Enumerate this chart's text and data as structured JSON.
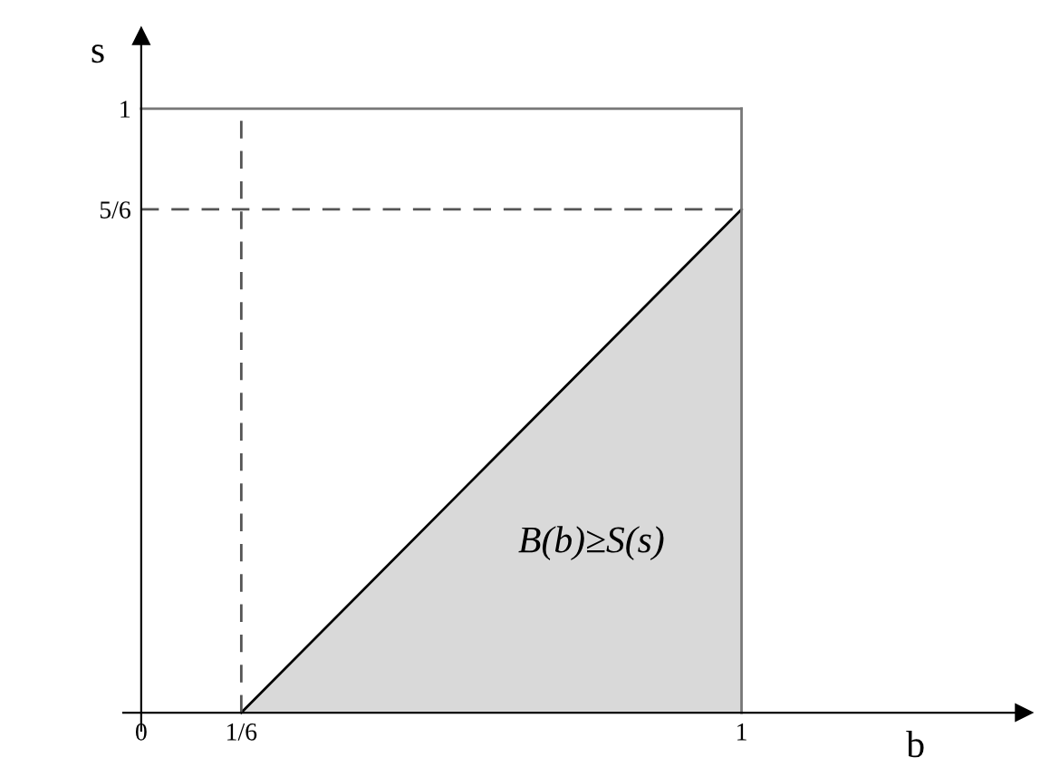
{
  "chart_data": {
    "type": "area",
    "xlabel": "b",
    "ylabel": "s",
    "x": [
      0.1667,
      1
    ],
    "values": [
      0,
      0.8333
    ],
    "color": "#d9d9d9",
    "xlim": [
      -0.03,
      1.47
    ],
    "ylim": [
      -0.03,
      1.12
    ],
    "xticks": [
      {
        "value": 0,
        "label": "0"
      },
      {
        "value": 0.1667,
        "label": "1/6"
      },
      {
        "value": 1,
        "label": "1"
      }
    ],
    "yticks": [
      {
        "value": 0.8333,
        "label": "5/6"
      },
      {
        "value": 1,
        "label": "1"
      }
    ],
    "ref_lines": [
      {
        "axis": "x",
        "value": 0.1667,
        "line_style": "dashed",
        "color": "#555555"
      },
      {
        "axis": "y",
        "value": 0.8333,
        "line_style": "dashed",
        "color": "#555555"
      },
      {
        "axis": "x",
        "value": 1,
        "line_style": "solid",
        "color": "#777777"
      },
      {
        "axis": "y",
        "value": 1,
        "line_style": "solid",
        "color": "#777777"
      }
    ],
    "annotations": [
      "B(b)≥S(s)"
    ],
    "grid": false,
    "legend": false
  }
}
